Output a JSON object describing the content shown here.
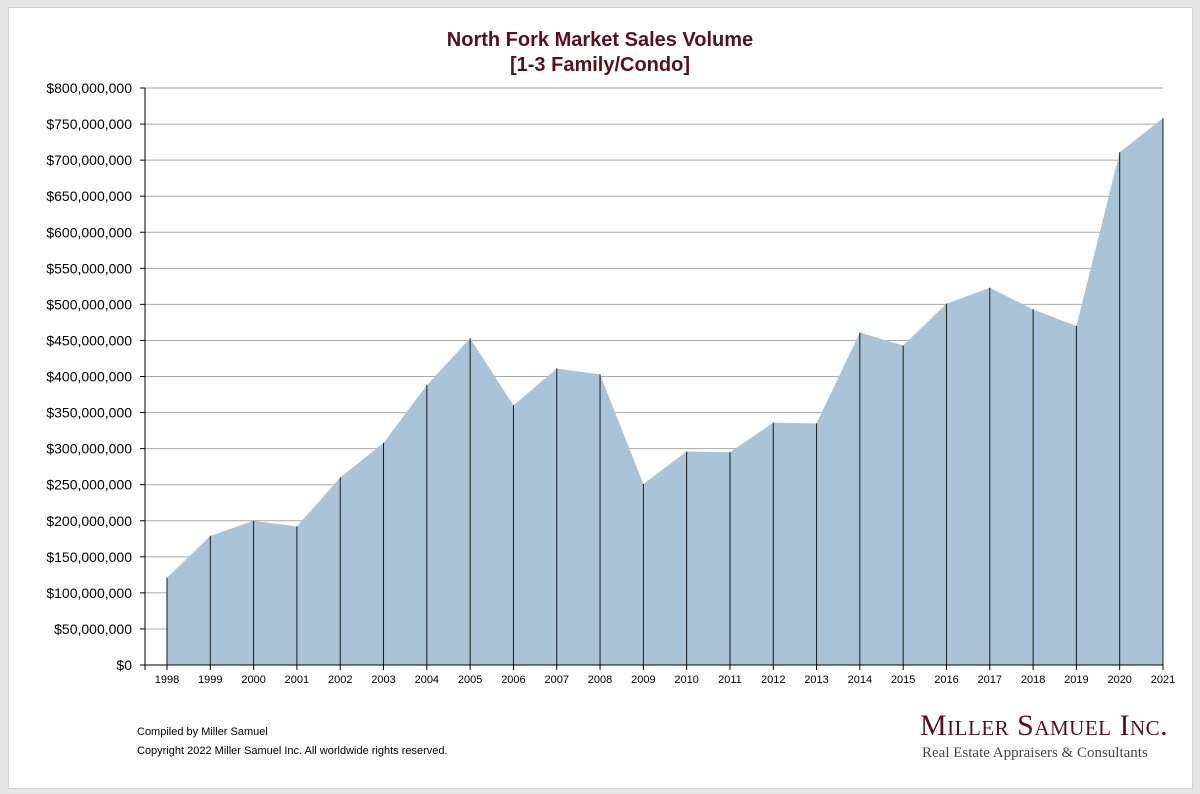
{
  "chart_data": {
    "type": "area",
    "title_line1": "North Fork Market Sales Volume",
    "title_line2": "[1-3 Family/Condo]",
    "xlabel": "",
    "ylabel": "",
    "ylim": [
      0,
      800000000
    ],
    "y_ticks": [
      {
        "value": 0,
        "label": "$0"
      },
      {
        "value": 50000000,
        "label": "$50,000,000"
      },
      {
        "value": 100000000,
        "label": "$100,000,000"
      },
      {
        "value": 150000000,
        "label": "$150,000,000"
      },
      {
        "value": 200000000,
        "label": "$200,000,000"
      },
      {
        "value": 250000000,
        "label": "$250,000,000"
      },
      {
        "value": 300000000,
        "label": "$300,000,000"
      },
      {
        "value": 350000000,
        "label": "$350,000,000"
      },
      {
        "value": 400000000,
        "label": "$400,000,000"
      },
      {
        "value": 450000000,
        "label": "$450,000,000"
      },
      {
        "value": 500000000,
        "label": "$500,000,000"
      },
      {
        "value": 550000000,
        "label": "$550,000,000"
      },
      {
        "value": 600000000,
        "label": "$600,000,000"
      },
      {
        "value": 650000000,
        "label": "$650,000,000"
      },
      {
        "value": 700000000,
        "label": "$700,000,000"
      },
      {
        "value": 750000000,
        "label": "$750,000,000"
      },
      {
        "value": 800000000,
        "label": "$800,000,000"
      }
    ],
    "grid": true,
    "categories": [
      "1998",
      "1999",
      "2000",
      "2001",
      "2002",
      "2003",
      "2004",
      "2005",
      "2006",
      "2007",
      "2008",
      "2009",
      "2010",
      "2011",
      "2012",
      "2013",
      "2014",
      "2015",
      "2016",
      "2017",
      "2018",
      "2019",
      "2020",
      "2021"
    ],
    "series": [
      {
        "name": "Sales Volume",
        "color": "#a9c4d9",
        "values": [
          121000000,
          179000000,
          200000000,
          192000000,
          260000000,
          308000000,
          388000000,
          453000000,
          360000000,
          411000000,
          403000000,
          251000000,
          296000000,
          295000000,
          336000000,
          335000000,
          461000000,
          443000000,
          501000000,
          523000000,
          493000000,
          470000000,
          711000000,
          758000000
        ]
      }
    ]
  },
  "footer": {
    "compiled": "Compiled by Miller Samuel",
    "copyright": "Copyright 2022 Miller Samuel Inc.  All worldwide rights reserved."
  },
  "logo": {
    "name": "Miller Samuel Inc.",
    "tagline": "Real Estate Appraisers & Consultants"
  },
  "colors": {
    "title": "#5a0f1c",
    "area_fill": "#a9c4d9",
    "gridline": "#a8a8a8",
    "axis": "#000000"
  }
}
